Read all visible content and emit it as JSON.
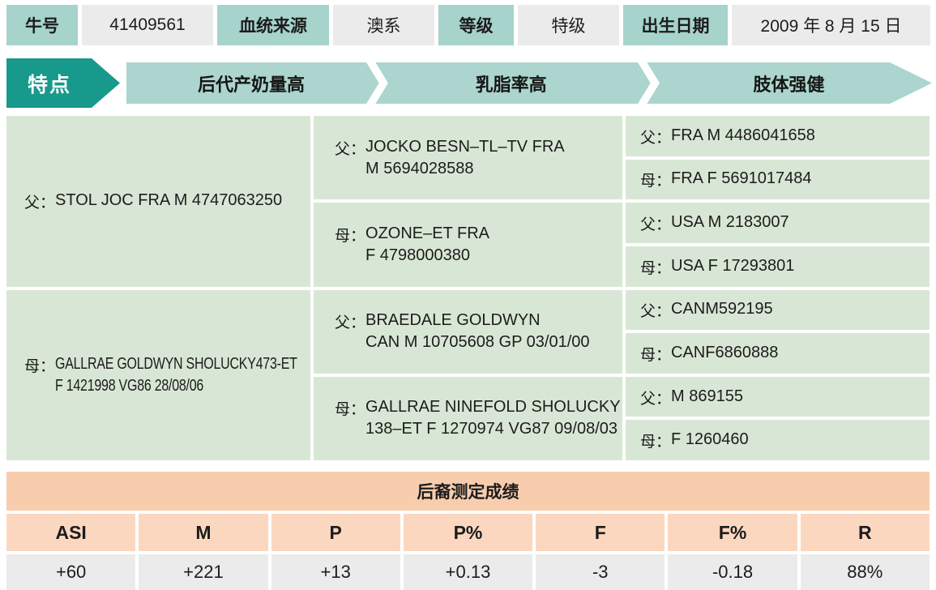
{
  "info_bar": {
    "fields": [
      {
        "label": "牛号",
        "value": "41409561"
      },
      {
        "label": "血统来源",
        "value": "澳系"
      },
      {
        "label": "等级",
        "value": "特级"
      },
      {
        "label": "出生日期",
        "value": "2009 年 8 月 15 日"
      }
    ]
  },
  "features": {
    "label": "特点",
    "items": [
      "后代产奶量高",
      "乳脂率高",
      "肢体强健"
    ]
  },
  "pedigree": {
    "generation1": [
      {
        "relation": "父：",
        "line1": "STOL JOC FRA M 4747063250",
        "line2": ""
      },
      {
        "relation": "母：",
        "line1": "GALLRAE GOLDWYN SHOLUCKY473-ET",
        "line2": "F 1421998 VG86 28/08/06"
      }
    ],
    "generation2": [
      {
        "relation": "父：",
        "line1": "JOCKO BESN–TL–TV  FRA",
        "line2": "M 5694028588"
      },
      {
        "relation": "母：",
        "line1": "OZONE–ET FRA",
        "line2": "F 4798000380"
      },
      {
        "relation": "父：",
        "line1": "BRAEDALE GOLDWYN",
        "line2": "CAN M 10705608 GP 03/01/00"
      },
      {
        "relation": "母：",
        "line1": "GALLRAE NINEFOLD SHOLUCKY",
        "line2": "138–ET F 1270974 VG87 09/08/03"
      }
    ],
    "generation3": [
      {
        "relation": "父：",
        "value": "FRA M 4486041658"
      },
      {
        "relation": "母：",
        "value": "FRA F 5691017484"
      },
      {
        "relation": "父：",
        "value": "USA M 2183007"
      },
      {
        "relation": "母：",
        "value": "USA F 17293801"
      },
      {
        "relation": "父：",
        "value": "CANM592195"
      },
      {
        "relation": "母：",
        "value": "CANF6860888"
      },
      {
        "relation": "父：",
        "value": "M 869155"
      },
      {
        "relation": "母：",
        "value": "F 1260460"
      }
    ]
  },
  "progeny_table": {
    "title": "后裔测定成绩",
    "columns": [
      "ASI",
      "M",
      "P",
      "P%",
      "F",
      "F%",
      "R"
    ],
    "values": [
      "+60",
      "+221",
      "+13",
      "+0.13",
      "-3",
      "-0.18",
      "88%"
    ]
  },
  "colors": {
    "teal_header": "#a6d3cc",
    "dark_teal_arrow": "#17998b",
    "light_teal_band": "#abd5ce",
    "pedigree_green": "#d8e7d5",
    "peach_title": "#f8cdae",
    "peach_header": "#fbd7c0",
    "gray_value": "#ebebeb"
  }
}
